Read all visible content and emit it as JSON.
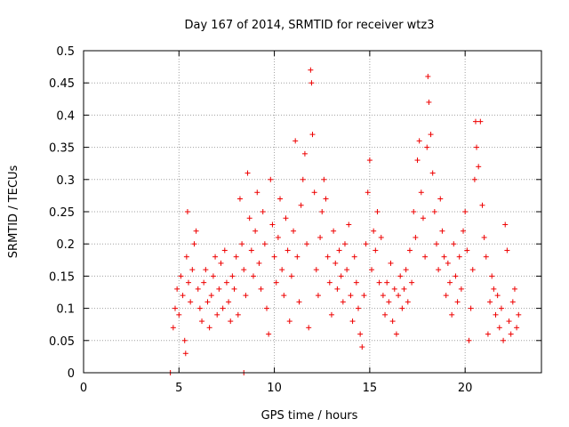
{
  "chart_data": {
    "type": "scatter",
    "title": "Day 167 of 2014, SRMTID for receiver wtz3",
    "xlabel": "GPS time / hours",
    "ylabel": "SRMTID / TECUs",
    "xlim": [
      0,
      24
    ],
    "ylim": [
      0,
      0.5
    ],
    "xticks": [
      0,
      5,
      10,
      15,
      20
    ],
    "yticks": [
      0,
      0.05,
      0.1,
      0.15,
      0.2,
      0.25,
      0.3,
      0.35,
      0.4,
      0.45,
      0.5
    ],
    "ytick_labels": [
      "0",
      "0.05",
      "0.1",
      "0.15",
      "0.2",
      "0.25",
      "0.3",
      "0.35",
      "0.4",
      "0.45",
      "0.5"
    ],
    "grid": true,
    "marker": "+",
    "series_color": "#ee0000",
    "series": [
      {
        "name": "SRMTID",
        "points": [
          [
            4.55,
            0.0
          ],
          [
            8.4,
            0.0
          ],
          [
            4.7,
            0.07
          ],
          [
            4.8,
            0.1
          ],
          [
            4.9,
            0.13
          ],
          [
            5.0,
            0.09
          ],
          [
            5.1,
            0.15
          ],
          [
            5.2,
            0.12
          ],
          [
            5.3,
            0.05
          ],
          [
            5.35,
            0.03
          ],
          [
            5.4,
            0.18
          ],
          [
            5.45,
            0.25
          ],
          [
            5.5,
            0.14
          ],
          [
            5.6,
            0.11
          ],
          [
            5.7,
            0.16
          ],
          [
            5.8,
            0.2
          ],
          [
            5.9,
            0.22
          ],
          [
            6.0,
            0.13
          ],
          [
            6.1,
            0.1
          ],
          [
            6.2,
            0.08
          ],
          [
            6.3,
            0.14
          ],
          [
            6.4,
            0.16
          ],
          [
            6.5,
            0.11
          ],
          [
            6.6,
            0.07
          ],
          [
            6.7,
            0.12
          ],
          [
            6.8,
            0.15
          ],
          [
            6.9,
            0.18
          ],
          [
            7.0,
            0.09
          ],
          [
            7.1,
            0.13
          ],
          [
            7.2,
            0.17
          ],
          [
            7.3,
            0.1
          ],
          [
            7.4,
            0.19
          ],
          [
            7.5,
            0.14
          ],
          [
            7.6,
            0.11
          ],
          [
            7.7,
            0.08
          ],
          [
            7.8,
            0.15
          ],
          [
            7.9,
            0.13
          ],
          [
            8.0,
            0.18
          ],
          [
            8.1,
            0.09
          ],
          [
            8.2,
            0.27
          ],
          [
            8.3,
            0.2
          ],
          [
            8.4,
            0.16
          ],
          [
            8.5,
            0.12
          ],
          [
            8.6,
            0.31
          ],
          [
            8.7,
            0.24
          ],
          [
            8.8,
            0.19
          ],
          [
            8.9,
            0.15
          ],
          [
            9.0,
            0.22
          ],
          [
            9.1,
            0.28
          ],
          [
            9.2,
            0.17
          ],
          [
            9.3,
            0.13
          ],
          [
            9.4,
            0.25
          ],
          [
            9.5,
            0.2
          ],
          [
            9.6,
            0.1
          ],
          [
            9.7,
            0.06
          ],
          [
            9.8,
            0.3
          ],
          [
            9.9,
            0.23
          ],
          [
            10.0,
            0.18
          ],
          [
            10.1,
            0.14
          ],
          [
            10.2,
            0.21
          ],
          [
            10.3,
            0.27
          ],
          [
            10.4,
            0.16
          ],
          [
            10.5,
            0.12
          ],
          [
            10.6,
            0.24
          ],
          [
            10.7,
            0.19
          ],
          [
            10.8,
            0.08
          ],
          [
            10.9,
            0.15
          ],
          [
            11.0,
            0.22
          ],
          [
            11.1,
            0.36
          ],
          [
            11.2,
            0.18
          ],
          [
            11.3,
            0.11
          ],
          [
            11.4,
            0.26
          ],
          [
            11.5,
            0.3
          ],
          [
            11.6,
            0.34
          ],
          [
            11.7,
            0.2
          ],
          [
            11.8,
            0.07
          ],
          [
            11.9,
            0.47
          ],
          [
            11.95,
            0.45
          ],
          [
            12.0,
            0.37
          ],
          [
            12.1,
            0.28
          ],
          [
            12.2,
            0.16
          ],
          [
            12.3,
            0.12
          ],
          [
            12.4,
            0.21
          ],
          [
            12.5,
            0.25
          ],
          [
            12.6,
            0.3
          ],
          [
            12.7,
            0.27
          ],
          [
            12.8,
            0.18
          ],
          [
            12.9,
            0.14
          ],
          [
            13.0,
            0.09
          ],
          [
            13.1,
            0.22
          ],
          [
            13.2,
            0.17
          ],
          [
            13.3,
            0.13
          ],
          [
            13.4,
            0.19
          ],
          [
            13.5,
            0.15
          ],
          [
            13.6,
            0.11
          ],
          [
            13.7,
            0.2
          ],
          [
            13.8,
            0.16
          ],
          [
            13.9,
            0.23
          ],
          [
            14.0,
            0.12
          ],
          [
            14.1,
            0.08
          ],
          [
            14.2,
            0.18
          ],
          [
            14.3,
            0.14
          ],
          [
            14.4,
            0.1
          ],
          [
            14.5,
            0.06
          ],
          [
            14.6,
            0.04
          ],
          [
            14.7,
            0.12
          ],
          [
            14.8,
            0.2
          ],
          [
            14.9,
            0.28
          ],
          [
            15.0,
            0.33
          ],
          [
            15.1,
            0.16
          ],
          [
            15.2,
            0.22
          ],
          [
            15.3,
            0.19
          ],
          [
            15.4,
            0.25
          ],
          [
            15.5,
            0.14
          ],
          [
            15.6,
            0.21
          ],
          [
            15.7,
            0.12
          ],
          [
            15.8,
            0.09
          ],
          [
            15.9,
            0.14
          ],
          [
            16.0,
            0.11
          ],
          [
            16.1,
            0.17
          ],
          [
            16.2,
            0.08
          ],
          [
            16.3,
            0.13
          ],
          [
            16.4,
            0.06
          ],
          [
            16.5,
            0.12
          ],
          [
            16.6,
            0.15
          ],
          [
            16.7,
            0.1
          ],
          [
            16.8,
            0.13
          ],
          [
            16.9,
            0.16
          ],
          [
            17.0,
            0.11
          ],
          [
            17.1,
            0.19
          ],
          [
            17.2,
            0.14
          ],
          [
            17.3,
            0.25
          ],
          [
            17.4,
            0.21
          ],
          [
            17.5,
            0.33
          ],
          [
            17.6,
            0.36
          ],
          [
            17.7,
            0.28
          ],
          [
            17.8,
            0.24
          ],
          [
            17.9,
            0.18
          ],
          [
            18.0,
            0.35
          ],
          [
            18.05,
            0.46
          ],
          [
            18.1,
            0.42
          ],
          [
            18.2,
            0.37
          ],
          [
            18.3,
            0.31
          ],
          [
            18.4,
            0.25
          ],
          [
            18.5,
            0.2
          ],
          [
            18.6,
            0.16
          ],
          [
            18.7,
            0.27
          ],
          [
            18.8,
            0.22
          ],
          [
            18.9,
            0.18
          ],
          [
            19.0,
            0.12
          ],
          [
            19.1,
            0.17
          ],
          [
            19.2,
            0.14
          ],
          [
            19.3,
            0.09
          ],
          [
            19.4,
            0.2
          ],
          [
            19.5,
            0.15
          ],
          [
            19.6,
            0.11
          ],
          [
            19.7,
            0.18
          ],
          [
            19.8,
            0.13
          ],
          [
            19.9,
            0.22
          ],
          [
            20.0,
            0.25
          ],
          [
            20.1,
            0.19
          ],
          [
            20.2,
            0.05
          ],
          [
            20.3,
            0.1
          ],
          [
            20.4,
            0.16
          ],
          [
            20.5,
            0.3
          ],
          [
            20.55,
            0.39
          ],
          [
            20.6,
            0.35
          ],
          [
            20.7,
            0.32
          ],
          [
            20.8,
            0.39
          ],
          [
            20.9,
            0.26
          ],
          [
            21.0,
            0.21
          ],
          [
            21.1,
            0.18
          ],
          [
            21.2,
            0.06
          ],
          [
            21.3,
            0.11
          ],
          [
            21.4,
            0.15
          ],
          [
            21.5,
            0.13
          ],
          [
            21.6,
            0.09
          ],
          [
            21.7,
            0.12
          ],
          [
            21.8,
            0.07
          ],
          [
            21.9,
            0.1
          ],
          [
            22.0,
            0.05
          ],
          [
            22.1,
            0.23
          ],
          [
            22.2,
            0.19
          ],
          [
            22.3,
            0.08
          ],
          [
            22.4,
            0.06
          ],
          [
            22.5,
            0.11
          ],
          [
            22.6,
            0.13
          ],
          [
            22.7,
            0.07
          ],
          [
            22.8,
            0.09
          ]
        ]
      }
    ]
  }
}
